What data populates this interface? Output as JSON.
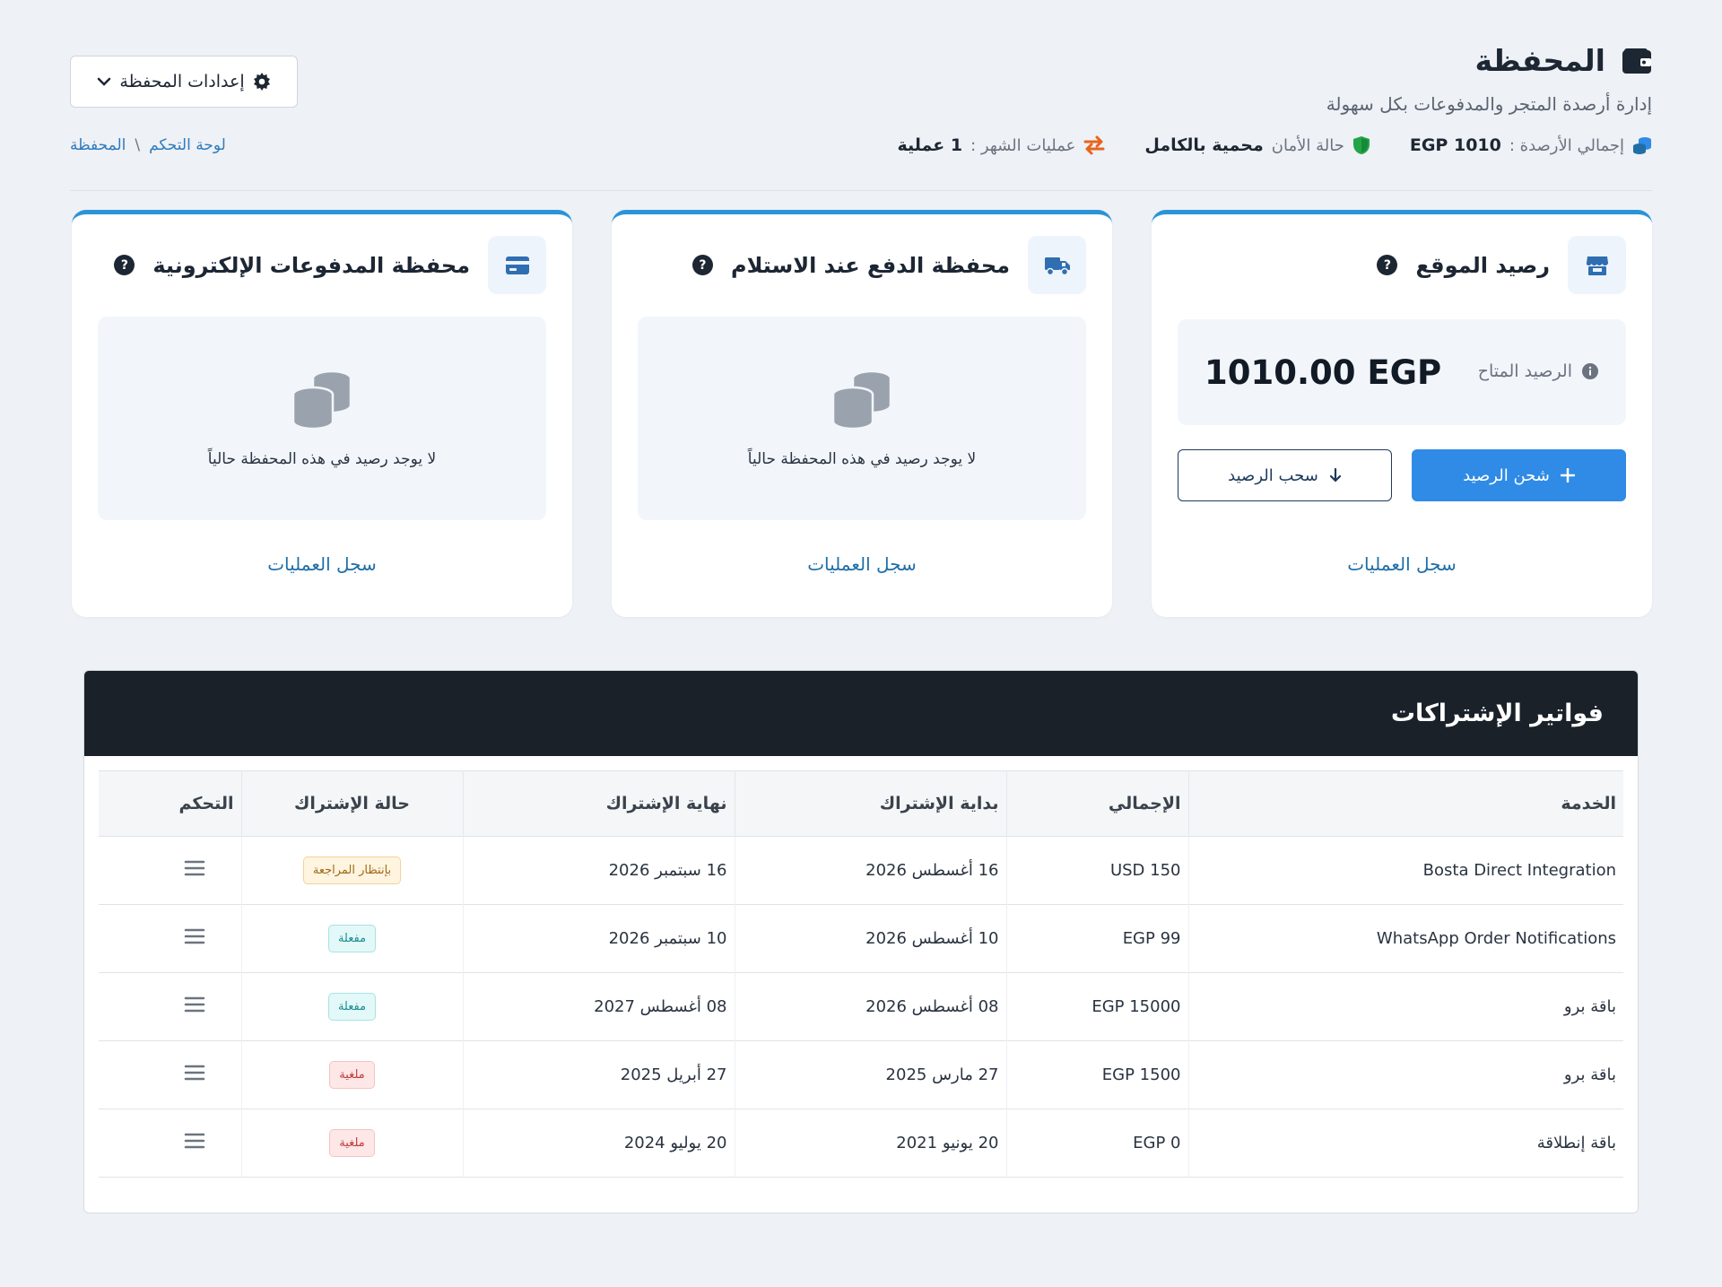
{
  "header": {
    "title": "المحفظة",
    "subtitle": "إدارة أرصدة المتجر والمدفوعات بكل سهولة",
    "settings_label": "إعدادات المحفظة",
    "breadcrumb": [
      "لوحة التحكم",
      "المحفظة"
    ],
    "stats": [
      {
        "label": "إجمالي الأرصدة :",
        "value": "EGP 1010",
        "icon": "coins-icon"
      },
      {
        "label": "حالة الأمان",
        "value": "محمية بالكامل",
        "icon": "shield-icon"
      },
      {
        "label": "عمليات الشهر :",
        "value": "1 عملية",
        "icon": "exchange-icon"
      }
    ]
  },
  "cards": {
    "site": {
      "title": "رصيد الموقع",
      "balance_label": "الرصيد المتاح",
      "balance_value": "1010.00 EGP",
      "charge_label": "شحن الرصيد",
      "withdraw_label": "سحب الرصيد",
      "link": "سجل العمليات"
    },
    "cod": {
      "title": "محفظة الدفع عند الاستلام",
      "empty_text": "لا يوجد رصيد في هذه المحفظة حالياً",
      "link": "سجل العمليات"
    },
    "epay": {
      "title": "محفظة المدفوعات الإلكترونية",
      "empty_text": "لا يوجد رصيد في هذه المحفظة حالياً",
      "link": "سجل العمليات"
    }
  },
  "invoices": {
    "title": "فواتير الإشتراكات",
    "columns": [
      "الخدمة",
      "الإجمالي",
      "بداية الإشتراك",
      "نهاية الإشتراك",
      "حالة الإشتراك",
      "التحكم"
    ],
    "rows": [
      {
        "service": "Bosta Direct Integration",
        "total": "USD 150",
        "start": "16 أغسطس 2026",
        "end": "16 سبتمبر 2026",
        "status": "بإنتظار المراجعة",
        "status_type": "pending"
      },
      {
        "service": "WhatsApp Order Notifications",
        "total": "EGP 99",
        "start": "10 أغسطس 2026",
        "end": "10 سبتمبر 2026",
        "status": "مفعلة",
        "status_type": "active"
      },
      {
        "service": "باقة برو",
        "total": "EGP 15000",
        "start": "08 أغسطس 2026",
        "end": "08 أغسطس 2027",
        "status": "مفعلة",
        "status_type": "active"
      },
      {
        "service": "باقة برو",
        "total": "EGP 1500",
        "start": "27 مارس 2025",
        "end": "27 أبريل 2025",
        "status": "ملغية",
        "status_type": "cancel"
      },
      {
        "service": "باقة إنطلاقة",
        "total": "EGP 0",
        "start": "20 يونيو 2021",
        "end": "20 يوليو 2024",
        "status": "ملغية",
        "status_type": "cancel"
      }
    ]
  },
  "colors": {
    "accent": "#2f8be6",
    "card_top": "#2b93d8",
    "dark_header": "#1a2129",
    "link": "#1f6ea8"
  }
}
